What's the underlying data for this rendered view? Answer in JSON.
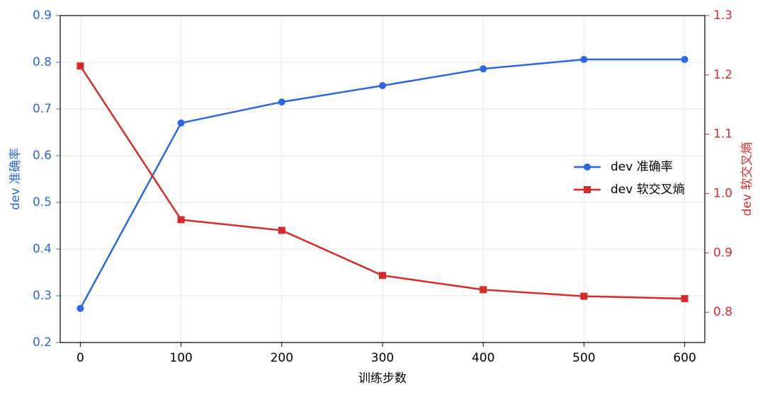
{
  "chart_data": {
    "type": "line",
    "x_label": "训练步数",
    "y_label": "dev 准确率",
    "y2_label": "dev 软交叉熵",
    "x": [
      0,
      100,
      200,
      300,
      400,
      500,
      600
    ],
    "series": [
      {
        "name": "dev 准确率",
        "color": "#2c66e0",
        "marker": "circle",
        "values": [
          0.273,
          0.67,
          0.715,
          0.75,
          0.786,
          0.806,
          0.806
        ]
      },
      {
        "name": "dev 软交叉熵",
        "color": "#d62b2b",
        "marker": "square",
        "axis": "y2",
        "values": [
          1.215,
          0.956,
          0.938,
          0.862,
          0.838,
          0.827,
          0.823
        ]
      }
    ],
    "xlim": [
      -20,
      620
    ],
    "xticks": [
      0,
      100,
      200,
      300,
      400,
      500,
      600
    ],
    "ylim": [
      0.2,
      0.9
    ],
    "yticks": [
      0.2,
      0.3,
      0.4,
      0.5,
      0.6,
      0.7,
      0.8,
      0.9
    ],
    "y2lim": [
      0.749,
      1.3
    ],
    "y2ticks": [
      0.8,
      0.9,
      {
        "value": 1,
        "label": "1.0"
      },
      1.1,
      1.2,
      1.3
    ],
    "grid": true,
    "legend": "right"
  }
}
